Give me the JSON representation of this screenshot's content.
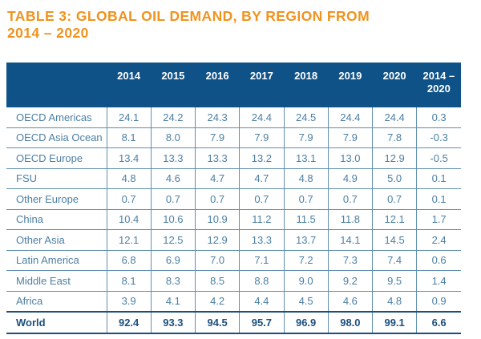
{
  "title": {
    "line1": "TABLE 3: GLOBAL OIL DEMAND, BY REGION FROM",
    "line2": "2014 – 2020"
  },
  "table": {
    "header": {
      "region_col": "",
      "years": [
        "2014",
        "2015",
        "2016",
        "2017",
        "2018",
        "2019",
        "2020"
      ],
      "change": {
        "line1": "2014 –",
        "line2": "2020"
      }
    },
    "rows": [
      {
        "label": "OECD Americas",
        "values": [
          "24.1",
          "24.2",
          "24.3",
          "24.4",
          "24.5",
          "24.4",
          "24.4",
          "0.3"
        ]
      },
      {
        "label": "OECD Asia Ocean",
        "values": [
          "8.1",
          "8.0",
          "7.9",
          "7.9",
          "7.9",
          "7.9",
          "7.8",
          "-0.3"
        ]
      },
      {
        "label": "OECD Europe",
        "values": [
          "13.4",
          "13.3",
          "13.3",
          "13.2",
          "13.1",
          "13.0",
          "12.9",
          "-0.5"
        ]
      },
      {
        "label": "FSU",
        "values": [
          "4.8",
          "4.6",
          "4.7",
          "4.7",
          "4.8",
          "4.9",
          "5.0",
          "0.1"
        ]
      },
      {
        "label": "Other Europe",
        "values": [
          "0.7",
          "0.7",
          "0.7",
          "0.7",
          "0.7",
          "0.7",
          "0.7",
          "0.1"
        ]
      },
      {
        "label": "China",
        "values": [
          "10.4",
          "10.6",
          "10.9",
          "11.2",
          "11.5",
          "11.8",
          "12.1",
          "1.7"
        ]
      },
      {
        "label": "Other Asia",
        "values": [
          "12.1",
          "12.5",
          "12.9",
          "13.3",
          "13.7",
          "14.1",
          "14.5",
          "2.4"
        ]
      },
      {
        "label": "Latin America",
        "values": [
          "6.8",
          "6.9",
          "7.0",
          "7.1",
          "7.2",
          "7.3",
          "7.4",
          "0.6"
        ]
      },
      {
        "label": "Middle East",
        "values": [
          "8.1",
          "8.3",
          "8.5",
          "8.8",
          "9.0",
          "9.2",
          "9.5",
          "1.4"
        ]
      },
      {
        "label": "Africa",
        "values": [
          "3.9",
          "4.1",
          "4.2",
          "4.4",
          "4.5",
          "4.6",
          "4.8",
          "0.9"
        ]
      }
    ],
    "total_row": {
      "label": "World",
      "values": [
        "92.4",
        "93.3",
        "94.5",
        "95.7",
        "96.9",
        "98.0",
        "99.1",
        "6.6"
      ]
    },
    "colors": {
      "title_orange": "#F0931E",
      "header_bg": "#0F5288",
      "header_text": "#FFFFFF",
      "body_text": "#4C7FA4",
      "grid_line": "#5F8FB0",
      "total_dark": "#1D4F7C"
    }
  }
}
